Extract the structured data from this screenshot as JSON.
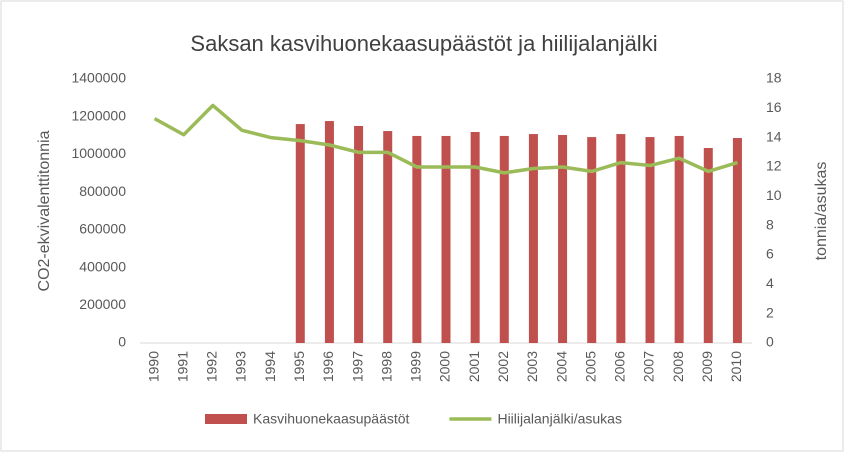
{
  "chart_data": {
    "type": "bar-line",
    "title": "Saksan kasvihuonekaasupäästöt ja hiilijalanjälki",
    "y_label": "CO2-ekvivalenttitonnia",
    "y2_label": "tonnia/asukas",
    "categories": [
      "1990",
      "1991",
      "1992",
      "1993",
      "1994",
      "1995",
      "1996",
      "1997",
      "1998",
      "1999",
      "2000",
      "2001",
      "2002",
      "2003",
      "2004",
      "2005",
      "2006",
      "2007",
      "2008",
      "2009",
      "2010"
    ],
    "series": [
      {
        "name": "Kasvihuonekaasupäästöt",
        "type": "bar",
        "color": "#c0504d",
        "values": [
          null,
          null,
          null,
          null,
          null,
          1161000,
          1177000,
          1151000,
          1124000,
          1098000,
          1098000,
          1119000,
          1098000,
          1108000,
          1103000,
          1092000,
          1108000,
          1092000,
          1098000,
          1034000,
          1087000
        ]
      },
      {
        "name": "Hiilijalanjälki/asukas",
        "type": "line",
        "color": "#9bbb59",
        "axis": "y2",
        "values": [
          15.3,
          14.2,
          16.2,
          14.5,
          14.0,
          13.8,
          13.5,
          13.0,
          13.0,
          12.0,
          12.0,
          12.0,
          11.6,
          11.9,
          12.0,
          11.7,
          12.3,
          12.1,
          12.6,
          11.7,
          12.3
        ]
      }
    ],
    "ylim": [
      0,
      1400000
    ],
    "yticks": [
      0,
      200000,
      400000,
      600000,
      800000,
      1000000,
      1200000,
      1400000
    ],
    "y2lim": [
      0,
      18
    ],
    "y2ticks": [
      0,
      2,
      4,
      6,
      8,
      10,
      12,
      14,
      16,
      18
    ],
    "legend": "bottom"
  }
}
